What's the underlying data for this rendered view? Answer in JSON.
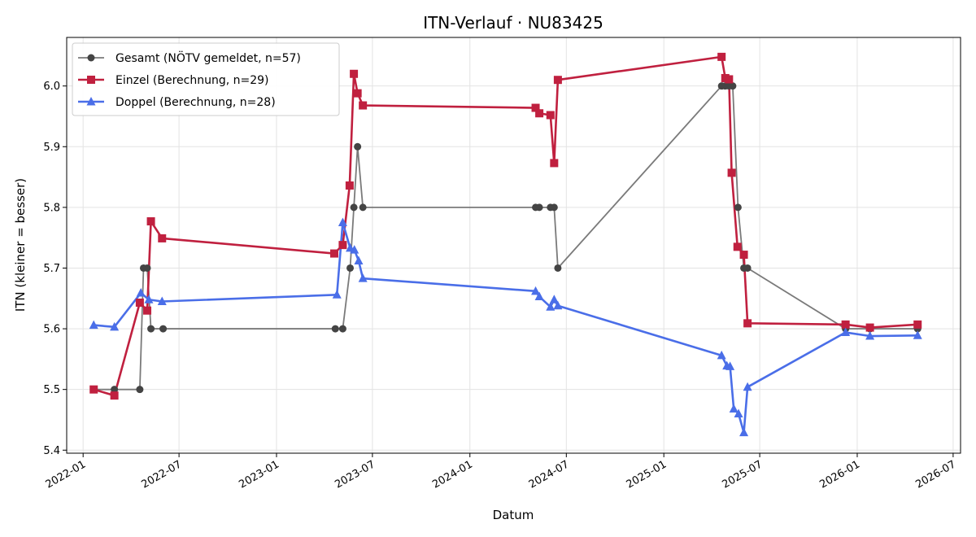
{
  "chart_data": {
    "type": "line",
    "title": "ITN-Verlauf · NU83425",
    "xlabel": "Datum",
    "ylabel": "ITN  (kleiner = besser)",
    "xlim": [
      "2021-12-01",
      "2026-07-15"
    ],
    "ylim": [
      5.395,
      6.08
    ],
    "x_ticks": [
      "2022-01",
      "2022-07",
      "2023-01",
      "2023-07",
      "2024-01",
      "2024-07",
      "2025-01",
      "2025-07",
      "2026-01",
      "2026-07"
    ],
    "y_ticks": [
      5.4,
      5.5,
      5.6,
      5.7,
      5.8,
      5.9,
      6.0
    ],
    "grid": true,
    "legend_position": "top-left",
    "series": [
      {
        "name": "Gesamt (NÖTV gemeldet, n=57)",
        "color": "#555555",
        "marker": "circle",
        "points": [
          [
            "2022-01-21",
            5.5
          ],
          [
            "2022-03-01",
            5.5
          ],
          [
            "2022-04-18",
            5.5
          ],
          [
            "2022-04-25",
            5.7
          ],
          [
            "2022-05-02",
            5.7
          ],
          [
            "2022-05-09",
            5.6
          ],
          [
            "2022-06-01",
            5.6
          ],
          [
            "2023-04-22",
            5.6
          ],
          [
            "2023-05-06",
            5.6
          ],
          [
            "2023-05-20",
            5.7
          ],
          [
            "2023-05-27",
            5.8
          ],
          [
            "2023-06-03",
            5.9
          ],
          [
            "2023-06-13",
            5.8
          ],
          [
            "2024-05-04",
            5.8
          ],
          [
            "2024-05-11",
            5.8
          ],
          [
            "2024-06-01",
            5.8
          ],
          [
            "2024-06-08",
            5.8
          ],
          [
            "2024-06-15",
            5.7
          ],
          [
            "2025-04-20",
            6.0
          ],
          [
            "2025-04-27",
            6.0
          ],
          [
            "2025-05-04",
            6.0
          ],
          [
            "2025-05-11",
            6.0
          ],
          [
            "2025-05-21",
            5.8
          ],
          [
            "2025-06-01",
            5.7
          ],
          [
            "2025-06-08",
            5.7
          ],
          [
            "2025-12-10",
            5.6
          ],
          [
            "2026-01-25",
            5.6
          ],
          [
            "2026-04-25",
            5.6
          ]
        ]
      },
      {
        "name": "Einzel (Berechnung, n=29)",
        "color": "#c0203f",
        "marker": "square",
        "points": [
          [
            "2022-01-21",
            5.5
          ],
          [
            "2022-03-01",
            5.49
          ],
          [
            "2022-04-18",
            5.643
          ],
          [
            "2022-05-02",
            5.63
          ],
          [
            "2022-05-09",
            5.777
          ],
          [
            "2022-05-30",
            5.749
          ],
          [
            "2023-04-20",
            5.724
          ],
          [
            "2023-05-06",
            5.738
          ],
          [
            "2023-05-19",
            5.836
          ],
          [
            "2023-05-27",
            6.02
          ],
          [
            "2023-06-03",
            5.988
          ],
          [
            "2023-06-13",
            5.968
          ],
          [
            "2024-05-04",
            5.964
          ],
          [
            "2024-05-11",
            5.955
          ],
          [
            "2024-06-01",
            5.952
          ],
          [
            "2024-06-08",
            5.873
          ],
          [
            "2024-06-15",
            6.01
          ],
          [
            "2025-04-20",
            6.048
          ],
          [
            "2025-04-27",
            6.013
          ],
          [
            "2025-05-04",
            6.011
          ],
          [
            "2025-05-09",
            5.857
          ],
          [
            "2025-05-20",
            5.735
          ],
          [
            "2025-06-01",
            5.722
          ],
          [
            "2025-06-08",
            5.609
          ],
          [
            "2025-12-10",
            5.607
          ],
          [
            "2026-01-25",
            5.602
          ],
          [
            "2026-04-25",
            5.607
          ]
        ]
      },
      {
        "name": "Doppel (Berechnung, n=28)",
        "color": "#4a6ee8",
        "marker": "triangle",
        "points": [
          [
            "2022-01-21",
            5.606
          ],
          [
            "2022-03-01",
            5.603
          ],
          [
            "2022-04-20",
            5.659
          ],
          [
            "2022-05-05",
            5.648
          ],
          [
            "2022-05-30",
            5.645
          ],
          [
            "2023-04-25",
            5.656
          ],
          [
            "2023-05-06",
            5.775
          ],
          [
            "2023-05-20",
            5.733
          ],
          [
            "2023-05-28",
            5.73
          ],
          [
            "2023-06-05",
            5.712
          ],
          [
            "2023-06-13",
            5.683
          ],
          [
            "2024-05-04",
            5.662
          ],
          [
            "2024-05-11",
            5.653
          ],
          [
            "2024-06-01",
            5.636
          ],
          [
            "2024-06-08",
            5.648
          ],
          [
            "2024-06-15",
            5.638
          ],
          [
            "2025-04-20",
            5.556
          ],
          [
            "2025-04-30",
            5.539
          ],
          [
            "2025-05-06",
            5.538
          ],
          [
            "2025-05-13",
            5.468
          ],
          [
            "2025-05-22",
            5.46
          ],
          [
            "2025-06-01",
            5.429
          ],
          [
            "2025-06-08",
            5.504
          ],
          [
            "2025-12-10",
            5.594
          ],
          [
            "2026-01-25",
            5.588
          ],
          [
            "2026-04-25",
            5.589
          ]
        ]
      }
    ]
  }
}
